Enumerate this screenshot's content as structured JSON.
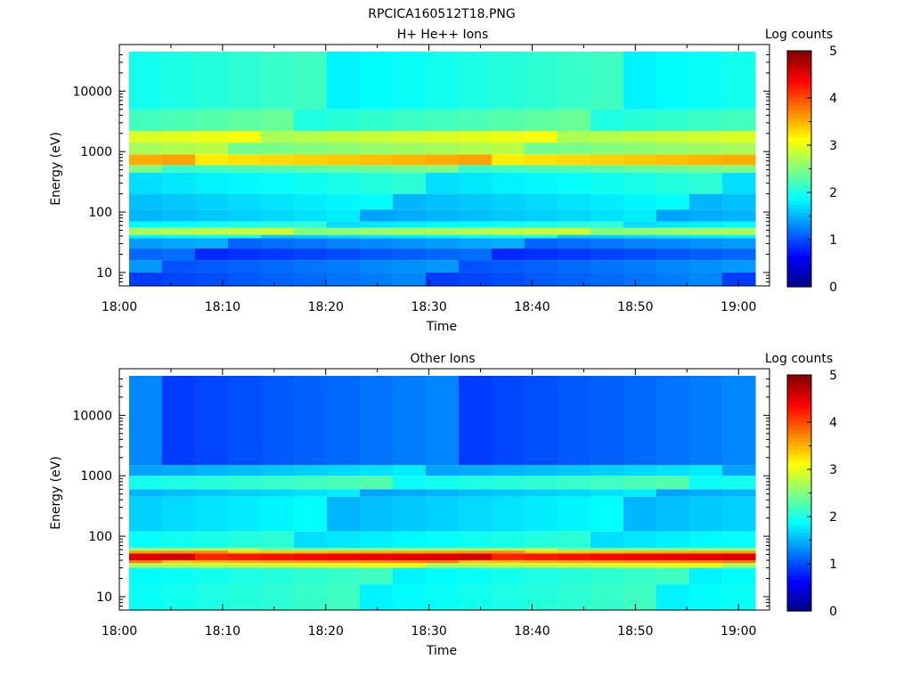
{
  "figure_title": "RPCICA160512T18.PNG",
  "chart_data": [
    {
      "type": "heatmap",
      "title": "H+ He++ Ions",
      "xlabel": "Time",
      "ylabel": "Energy (eV)",
      "x_ticks": [
        "18:00",
        "18:10",
        "18:20",
        "18:30",
        "18:40",
        "18:50",
        "19:00"
      ],
      "x_range": [
        "18:00",
        "19:03"
      ],
      "y_scale": "log",
      "y_ticks": [
        10,
        100,
        1000,
        10000
      ],
      "y_tick_labels": [
        "10",
        "100",
        "1000",
        "10000"
      ],
      "y_range": [
        6,
        45000
      ],
      "colorbar": {
        "label": "Log counts",
        "ticks": [
          "0",
          "1",
          "2",
          "3",
          "4",
          "5"
        ],
        "range": [
          0,
          5
        ],
        "colormap": "jet"
      },
      "time_bins": [
        "18:01",
        "18:04",
        "18:07",
        "18:11",
        "18:14",
        "18:17",
        "18:20",
        "18:24",
        "18:27",
        "18:30",
        "18:33",
        "18:37",
        "18:40",
        "18:43",
        "18:46",
        "18:50",
        "18:53",
        "18:56",
        "18:59"
      ],
      "bands": [
        {
          "energy_ev": [
            6,
            10
          ],
          "log_counts": 1.1
        },
        {
          "energy_ev": [
            10,
            16
          ],
          "log_counts": 1.2
        },
        {
          "energy_ev": [
            16,
            25
          ],
          "log_counts": 1.0
        },
        {
          "energy_ev": [
            25,
            37
          ],
          "log_counts": 1.3
        },
        {
          "energy_ev": [
            37,
            42
          ],
          "log_counts": 1.8
        },
        {
          "energy_ev": [
            42,
            55
          ],
          "log_counts": 2.7
        },
        {
          "energy_ev": [
            55,
            70
          ],
          "log_counts": 1.9
        },
        {
          "energy_ev": [
            70,
            110
          ],
          "log_counts": 1.6
        },
        {
          "energy_ev": [
            110,
            200
          ],
          "log_counts": 1.7
        },
        {
          "energy_ev": [
            200,
            450
          ],
          "log_counts": 1.9
        },
        {
          "energy_ev": [
            450,
            600
          ],
          "log_counts": 2.3
        },
        {
          "energy_ev": [
            600,
            900
          ],
          "log_counts": 3.4
        },
        {
          "energy_ev": [
            900,
            1400
          ],
          "log_counts": 2.6
        },
        {
          "energy_ev": [
            1400,
            2200
          ],
          "log_counts": 2.9
        },
        {
          "energy_ev": [
            2200,
            5000
          ],
          "log_counts": 2.2
        },
        {
          "energy_ev": [
            5000,
            45000
          ],
          "log_counts": 2.0
        }
      ]
    },
    {
      "type": "heatmap",
      "title": "Other Ions",
      "xlabel": "Time",
      "ylabel": "Energy (eV)",
      "x_ticks": [
        "18:00",
        "18:10",
        "18:20",
        "18:30",
        "18:40",
        "18:50",
        "19:00"
      ],
      "x_range": [
        "18:00",
        "19:03"
      ],
      "y_scale": "log",
      "y_ticks": [
        10,
        100,
        1000,
        10000
      ],
      "y_tick_labels": [
        "10",
        "100",
        "1000",
        "10000"
      ],
      "y_range": [
        6,
        45000
      ],
      "colorbar": {
        "label": "Log counts",
        "ticks": [
          "0",
          "1",
          "2",
          "3",
          "4",
          "5"
        ],
        "range": [
          0,
          5
        ],
        "colormap": "jet"
      },
      "time_bins": [
        "18:01",
        "18:04",
        "18:07",
        "18:11",
        "18:14",
        "18:17",
        "18:20",
        "18:24",
        "18:27",
        "18:30",
        "18:33",
        "18:37",
        "18:40",
        "18:43",
        "18:46",
        "18:50",
        "18:53",
        "18:56",
        "18:59"
      ],
      "bands": [
        {
          "energy_ev": [
            6,
            16
          ],
          "log_counts": 2.0
        },
        {
          "energy_ev": [
            16,
            30
          ],
          "log_counts": 2.0
        },
        {
          "energy_ev": [
            30,
            36
          ],
          "log_counts": 2.9
        },
        {
          "energy_ev": [
            36,
            40
          ],
          "log_counts": 3.6
        },
        {
          "energy_ev": [
            40,
            52
          ],
          "log_counts": 4.4
        },
        {
          "energy_ev": [
            52,
            58
          ],
          "log_counts": 3.5
        },
        {
          "energy_ev": [
            58,
            64
          ],
          "log_counts": 2.6
        },
        {
          "energy_ev": [
            64,
            120
          ],
          "log_counts": 1.9
        },
        {
          "energy_ev": [
            120,
            450
          ],
          "log_counts": 1.7
        },
        {
          "energy_ev": [
            450,
            600
          ],
          "log_counts": 1.6
        },
        {
          "energy_ev": [
            600,
            1000
          ],
          "log_counts": 2.1
        },
        {
          "energy_ev": [
            1000,
            1500
          ],
          "log_counts": 1.6
        },
        {
          "energy_ev": [
            1500,
            45000
          ],
          "log_counts": 1.1
        }
      ]
    }
  ]
}
